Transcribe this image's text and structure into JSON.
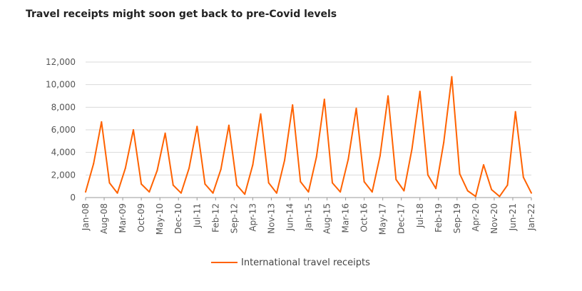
{
  "title": "Travel receipts might soon get back to pre-Covid levels",
  "chart_data": {
    "type": "line",
    "title": "Travel receipts might soon get back to pre-Covid levels",
    "xlabel": "",
    "ylabel": "",
    "ylim": [
      0,
      12000
    ],
    "y_ticks": [
      "0",
      "2,000",
      "4,000",
      "6,000",
      "8,000",
      "10,000",
      "12,000"
    ],
    "y_tick_values": [
      0,
      2000,
      4000,
      6000,
      8000,
      10000,
      12000
    ],
    "grid": true,
    "legend_position": "bottom",
    "x_tick_labels": [
      "Jan-08",
      "Aug-08",
      "Mar-09",
      "Oct-09",
      "May-10",
      "Dec-10",
      "Jul-11",
      "Feb-12",
      "Sep-12",
      "Apr-13",
      "Nov-13",
      "Jun-14",
      "Jan-15",
      "Aug-15",
      "Mar-16",
      "Oct-16",
      "May-17",
      "Dec-17",
      "Jul-18",
      "Feb-19",
      "Sep-19",
      "Apr-20",
      "Nov-20",
      "Jun-21",
      "Jan-22"
    ],
    "x": [
      "Jan-08",
      "Apr-08",
      "Jul-08",
      "Oct-08",
      "Jan-09",
      "Apr-09",
      "Jul-09",
      "Oct-09",
      "Jan-10",
      "Apr-10",
      "Jul-10",
      "Oct-10",
      "Jan-11",
      "Apr-11",
      "Jul-11",
      "Oct-11",
      "Jan-12",
      "Apr-12",
      "Jul-12",
      "Oct-12",
      "Jan-13",
      "Apr-13",
      "Jul-13",
      "Oct-13",
      "Jan-14",
      "Apr-14",
      "Jul-14",
      "Oct-14",
      "Jan-15",
      "Apr-15",
      "Jul-15",
      "Oct-15",
      "Jan-16",
      "Apr-16",
      "Jul-16",
      "Oct-16",
      "Jan-17",
      "Apr-17",
      "Jul-17",
      "Oct-17",
      "Jan-18",
      "Apr-18",
      "Jul-18",
      "Oct-18",
      "Jan-19",
      "Apr-19",
      "Jul-19",
      "Oct-19",
      "Jan-20",
      "Apr-20",
      "Jul-20",
      "Oct-20",
      "Jan-21",
      "Apr-21",
      "Jul-21",
      "Oct-21",
      "Jan-22"
    ],
    "series": [
      {
        "name": "International travel receipts",
        "color": "#ff6200",
        "values": [
          500,
          3000,
          6700,
          1300,
          400,
          2600,
          6000,
          1200,
          500,
          2400,
          5700,
          1100,
          400,
          2600,
          6300,
          1200,
          400,
          2500,
          6400,
          1100,
          300,
          2900,
          7400,
          1300,
          400,
          3300,
          8200,
          1400,
          500,
          3600,
          8700,
          1300,
          500,
          3400,
          7900,
          1400,
          500,
          3700,
          9000,
          1600,
          600,
          4300,
          9400,
          2000,
          800,
          4900,
          10700,
          2100,
          600,
          100,
          2900,
          700,
          100,
          1100,
          7600,
          1800,
          400
        ]
      }
    ]
  }
}
